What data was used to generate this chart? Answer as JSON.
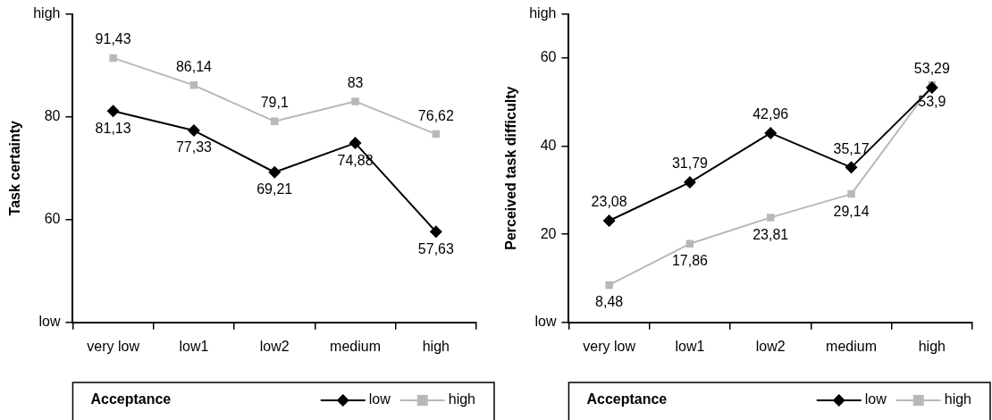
{
  "chart_data": [
    {
      "type": "line",
      "ylabel": "Task certainty",
      "categories": [
        "very low",
        "low1",
        "low2",
        "medium",
        "high"
      ],
      "ylim": [
        40,
        100
      ],
      "yticks": [
        {
          "value": 40,
          "label": "low"
        },
        60,
        80,
        {
          "value": 100,
          "label": "high"
        }
      ],
      "legend": "bottom",
      "legend_title": "Acceptance",
      "grid": false,
      "series": [
        {
          "name": "low",
          "color": "#000000",
          "marker": "diamond",
          "values": [
            81.13,
            77.33,
            69.21,
            74.88,
            57.63
          ],
          "value_labels": [
            "81,13",
            "77,33",
            "69,21",
            "74,88",
            "57,63"
          ]
        },
        {
          "name": "high",
          "color": "#b8b8b8",
          "marker": "square",
          "values": [
            91.43,
            86.14,
            79.1,
            83,
            76.62
          ],
          "value_labels": [
            "91,43",
            "86,14",
            "79,1",
            "83",
            "76,62"
          ]
        }
      ]
    },
    {
      "type": "line",
      "ylabel": "Perceived task difficulty",
      "categories": [
        "very low",
        "low1",
        "low2",
        "medium",
        "high"
      ],
      "ylim": [
        0,
        70
      ],
      "yticks": [
        {
          "value": 0,
          "label": "low"
        },
        20,
        40,
        60,
        {
          "value": 70,
          "label": "high"
        }
      ],
      "legend": "bottom",
      "legend_title": "Acceptance",
      "grid": false,
      "series": [
        {
          "name": "low",
          "color": "#000000",
          "marker": "diamond",
          "values": [
            23.08,
            31.79,
            42.96,
            35.17,
            53.29
          ],
          "value_labels": [
            "23,08",
            "31,79",
            "42,96",
            "35,17",
            "53,29"
          ]
        },
        {
          "name": "high",
          "color": "#b8b8b8",
          "marker": "square",
          "values": [
            8.48,
            17.86,
            23.81,
            29.14,
            53.9
          ],
          "value_labels": [
            "8,48",
            "17,86",
            "23,81",
            "29,14",
            "53,9"
          ]
        }
      ]
    }
  ]
}
